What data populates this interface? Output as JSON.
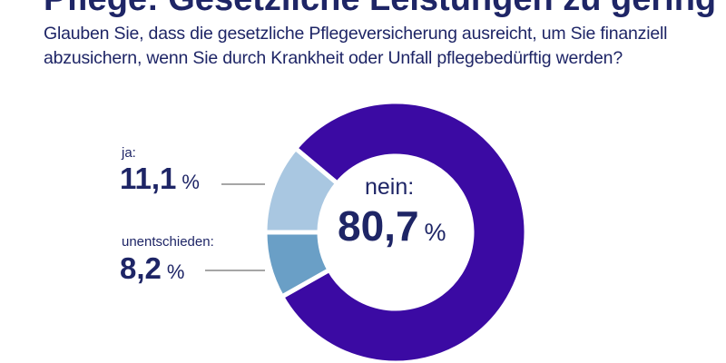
{
  "title": "Pflege: Gesetzliche Leistungen zu gering",
  "subtitle": "Glauben Sie, dass die gesetzliche Pflegeversicherung ausreicht, um Sie finanziell abzusichern, wenn Sie durch Krankheit oder Unfall pflegebedürftig werden?",
  "chart_data": {
    "type": "pie",
    "donut": true,
    "title": "Pflege: Gesetzliche Leistungen zu gering",
    "slices": [
      {
        "label": "nein:",
        "value": 80.7,
        "display": "80,7",
        "unit": "%",
        "color": "#3b0aa3"
      },
      {
        "label": "unentschieden:",
        "value": 8.2,
        "display": "8,2",
        "unit": "%",
        "color": "#6a9fc6"
      },
      {
        "label": "ja:",
        "value": 11.1,
        "display": "11,1",
        "unit": "%",
        "color": "#a9c7e1"
      }
    ]
  }
}
